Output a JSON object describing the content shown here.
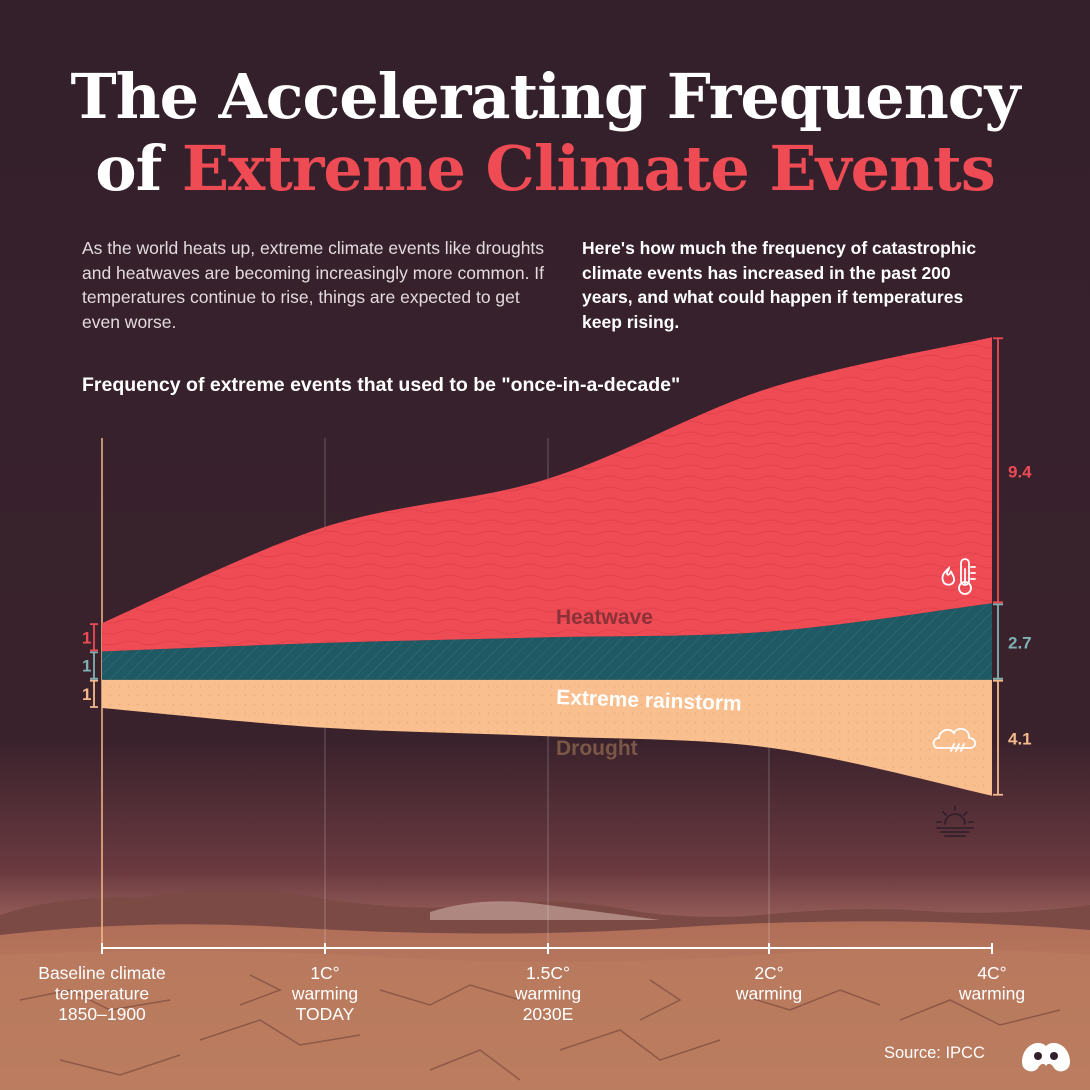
{
  "title": {
    "line1": "The Accelerating Frequency",
    "line2_prefix": "of ",
    "line2_accent": "Extreme Climate Events"
  },
  "intro": {
    "left": "As the world heats up, extreme climate events like droughts and heatwaves are becoming increasingly more common. If temperatures continue to rise, things are expected to get even worse.",
    "right": "Here's how much the frequency of catastrophic climate events has increased in the past 200 years, and what could happen if temperatures keep rising."
  },
  "source": "Source:  IPCC",
  "chart_data": {
    "type": "area",
    "stacked": true,
    "title": "Frequency of extreme events that used to be \"once-in-a-decade\"",
    "categories": [
      [
        "Baseline climate",
        "temperature",
        "1850–1900"
      ],
      [
        "1C°",
        "warming",
        "TODAY"
      ],
      [
        "1.5C°",
        "warming",
        "2030E"
      ],
      [
        "2C°",
        "warming"
      ],
      [
        "4C°",
        "warming"
      ]
    ],
    "series": [
      {
        "name": "Drought",
        "values": [
          1,
          1.7,
          2.0,
          2.4,
          4.1
        ],
        "color": "#f9bf8f",
        "start_label": "1",
        "end_label": "4.1",
        "icon": "drought-sun-icon"
      },
      {
        "name": "Extreme rainstorm",
        "values": [
          1,
          1.3,
          1.5,
          1.7,
          2.7
        ],
        "color": "#1f5a64",
        "start_label": "1",
        "end_label": "2.7",
        "icon": "rain-cloud-icon"
      },
      {
        "name": "Heatwave",
        "values": [
          1,
          4.1,
          5.6,
          8.6,
          9.4
        ],
        "color": "#ef4b55",
        "start_label": "1",
        "end_label": "9.4",
        "icon": "heat-thermometer-icon"
      }
    ],
    "grid": true,
    "legend": "inline"
  }
}
